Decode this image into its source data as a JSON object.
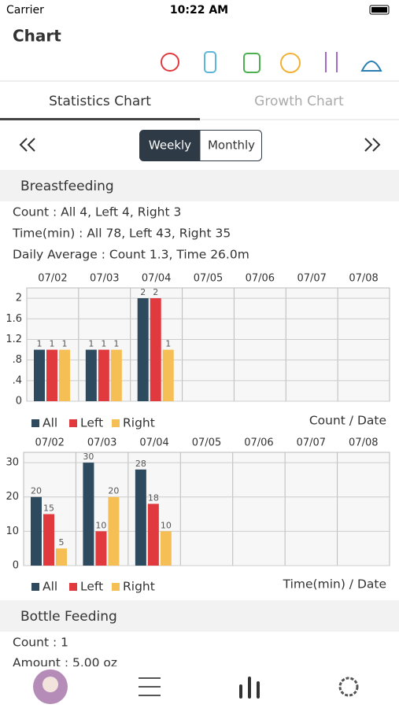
{
  "status": {
    "carrier": "Carrier",
    "time": "10:22 AM"
  },
  "header": {
    "title": "Chart"
  },
  "tabs": [
    "Statistics Chart",
    "Growth Chart"
  ],
  "toggle": [
    "Weekly",
    "Monthly"
  ],
  "sections": [
    {
      "title": "Breastfeeding",
      "lines": [
        "Count : All 4, Left 4, Right 3",
        "Time(min) : All 78, Left 43, Right 35",
        "Daily Average : Count 1.3, Time 26.0m"
      ]
    },
    {
      "title": "Bottle Feeding",
      "lines": [
        "Count : 1",
        "Amount : 5.00 oz"
      ]
    }
  ],
  "chart_data": [
    {
      "type": "bar",
      "y_label": "Count / Date",
      "categories": [
        "07/02",
        "07/03",
        "07/04",
        "07/05",
        "07/06",
        "07/07",
        "07/08"
      ],
      "series": [
        {
          "name": "All",
          "color": "#2e4a5e",
          "values": [
            1,
            1,
            2,
            null,
            null,
            null,
            null
          ]
        },
        {
          "name": "Left",
          "color": "#e0393e",
          "values": [
            1,
            1,
            2,
            null,
            null,
            null,
            null
          ]
        },
        {
          "name": "Right",
          "color": "#f5bf55",
          "values": [
            1,
            1,
            1,
            null,
            null,
            null,
            null
          ]
        }
      ],
      "ylim": [
        0,
        2.2
      ],
      "yticks": [
        0,
        {
          "value": 0.4,
          "label": ".4"
        },
        {
          "value": 0.8,
          "label": ".8"
        },
        1.2,
        1.6,
        2
      ],
      "grid": true
    },
    {
      "type": "bar",
      "y_label": "Time(min) / Date",
      "categories": [
        "07/02",
        "07/03",
        "07/04",
        "07/05",
        "07/06",
        "07/07",
        "07/08"
      ],
      "series": [
        {
          "name": "All",
          "color": "#2e4a5e",
          "values": [
            20,
            30,
            28,
            null,
            null,
            null,
            null
          ]
        },
        {
          "name": "Left",
          "color": "#e0393e",
          "values": [
            15,
            10,
            18,
            null,
            null,
            null,
            null
          ]
        },
        {
          "name": "Right",
          "color": "#f5bf55",
          "values": [
            5,
            20,
            10,
            null,
            null,
            null,
            null
          ]
        }
      ],
      "ylim": [
        0,
        33
      ],
      "yticks": [
        0,
        10,
        20,
        30
      ],
      "grid": true
    }
  ]
}
